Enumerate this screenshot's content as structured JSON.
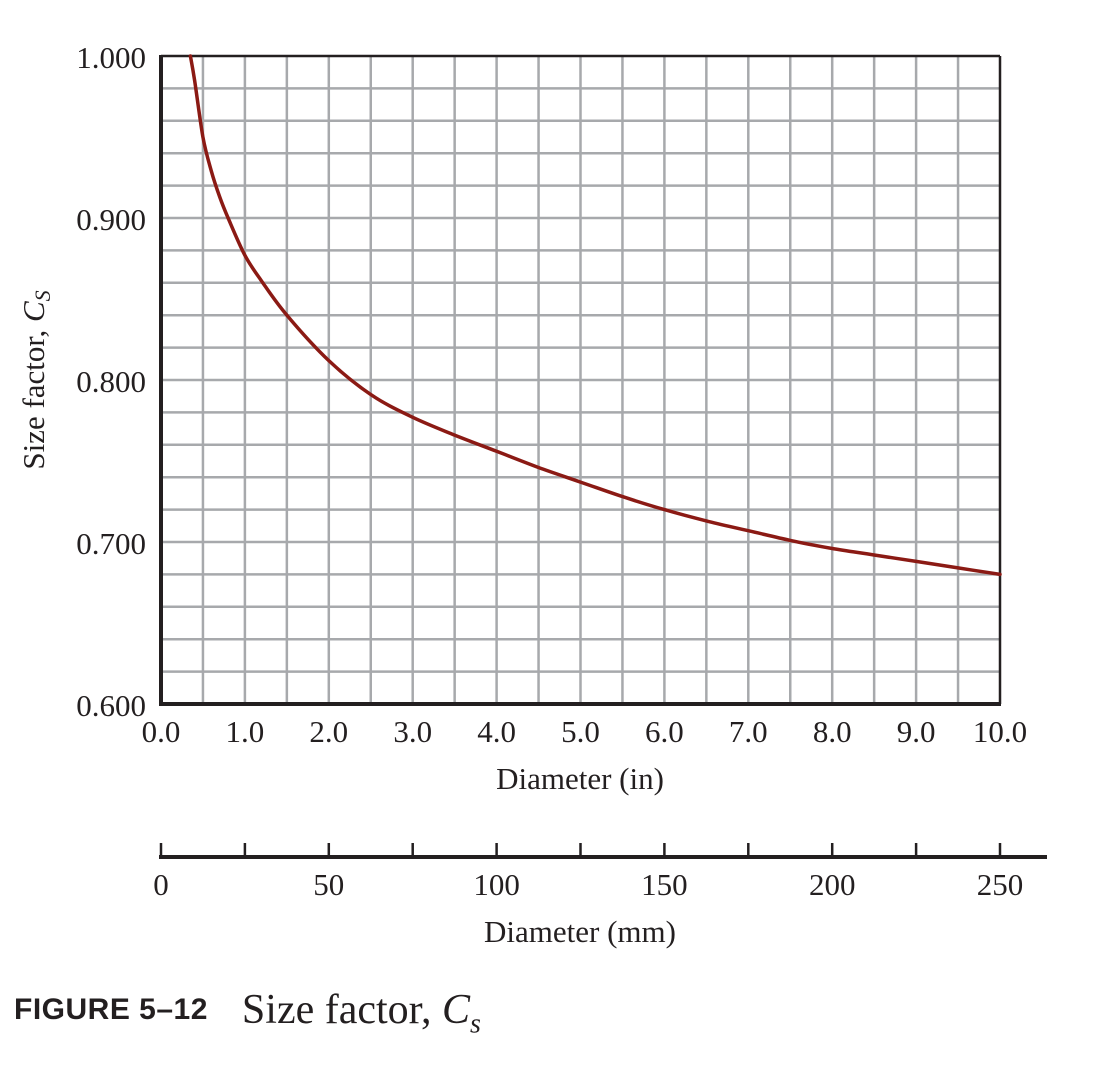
{
  "chart_data": {
    "type": "line",
    "x_label": "Diameter (in)",
    "y_label_main": "Size factor, ",
    "y_label_symbol": "C",
    "y_label_sub": "S",
    "secondary_x_label": "Diameter (mm)",
    "x_range": [
      0,
      10
    ],
    "y_range": [
      0.6,
      1.0
    ],
    "secondary_x_range": [
      0,
      250
    ],
    "x_ticks": [
      "0.0",
      "1.0",
      "2.0",
      "3.0",
      "4.0",
      "5.0",
      "6.0",
      "7.0",
      "8.0",
      "9.0",
      "10.0"
    ],
    "y_ticks": [
      "0.600",
      "0.700",
      "0.800",
      "0.900",
      "1.000"
    ],
    "secondary_x_ticks": [
      "0",
      "50",
      "100",
      "150",
      "200",
      "250"
    ],
    "grid": true,
    "line_color": "#8b1a14",
    "series": [
      {
        "x": [
          0.35,
          0.4,
          0.5,
          0.6,
          0.7,
          0.8,
          1.0,
          1.2,
          1.5,
          2.0,
          2.5,
          3.0,
          3.5,
          4.0,
          4.5,
          5.0,
          5.5,
          6.0,
          6.5,
          7.0,
          7.5,
          8.0,
          8.5,
          9.0,
          9.5,
          10.0
        ],
        "y": [
          1.0,
          0.985,
          0.95,
          0.929,
          0.913,
          0.9,
          0.877,
          0.861,
          0.84,
          0.812,
          0.791,
          0.777,
          0.766,
          0.756,
          0.746,
          0.737,
          0.728,
          0.72,
          0.713,
          0.707,
          0.701,
          0.696,
          0.692,
          0.688,
          0.684,
          0.68
        ]
      }
    ]
  },
  "caption": {
    "label": "FIGURE 5–12",
    "text": "Size factor, ",
    "symbol": "C",
    "symbol_sub": "s"
  }
}
